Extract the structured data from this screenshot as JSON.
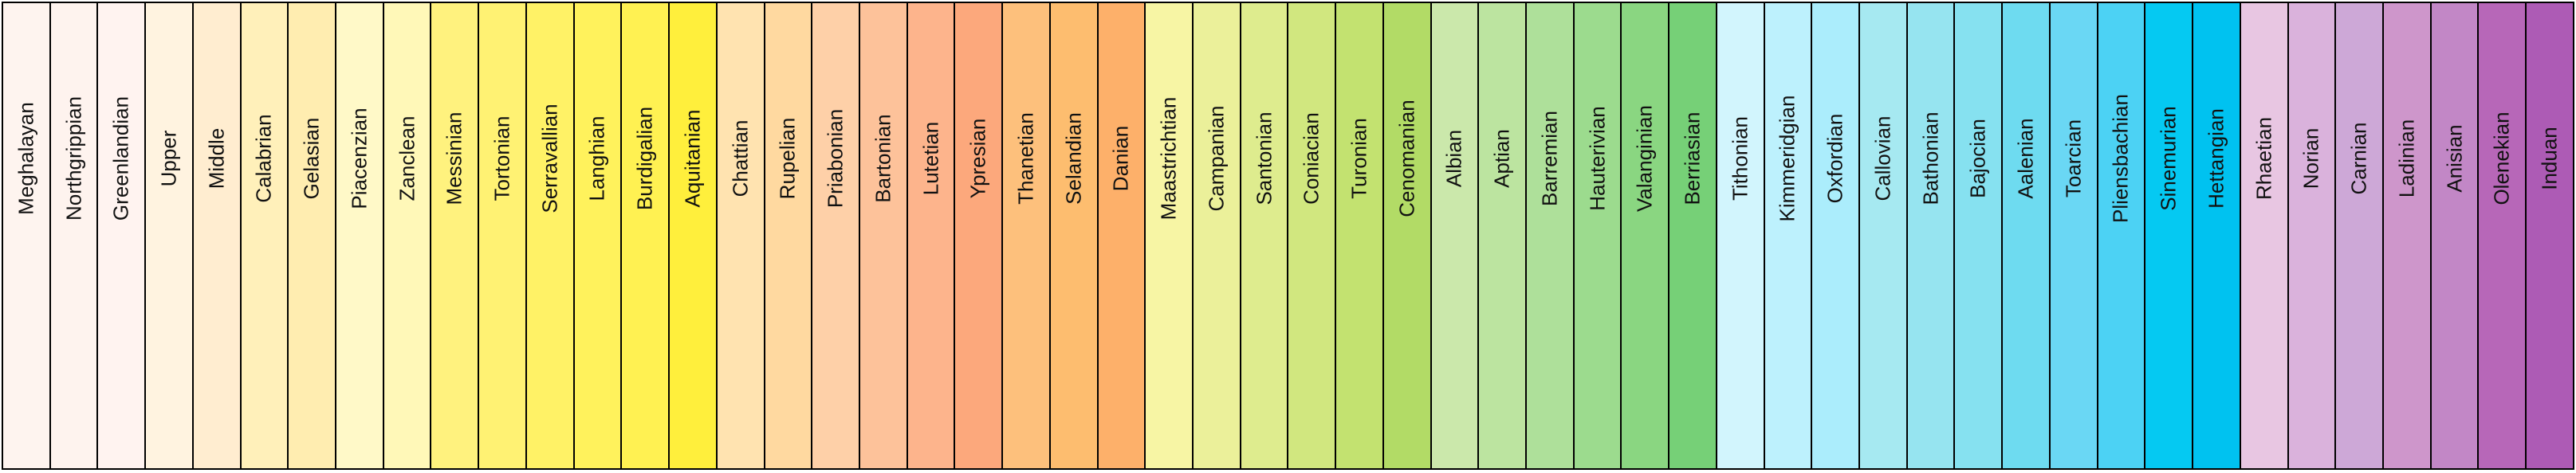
{
  "stages": [
    {
      "name": "Meghalayan",
      "color": "#FEF2EC"
    },
    {
      "name": "Northgrippian",
      "color": "#FEF1EB"
    },
    {
      "name": "Greenlandian",
      "color": "#FEF0E9"
    },
    {
      "name": "Upper",
      "color": "#FFF2DF"
    },
    {
      "name": "Middle",
      "color": "#FFEBCF"
    },
    {
      "name": "Calabrian",
      "color": "#FFF2BA"
    },
    {
      "name": "Gelasian",
      "color": "#FFEDB3"
    },
    {
      "name": "Piacenzian",
      "color": "#FFFBC2"
    },
    {
      "name": "Zanclean",
      "color": "#FFF9B2"
    },
    {
      "name": "Messinian",
      "color": "#FFF77B"
    },
    {
      "name": "Tortonian",
      "color": "#FFF76E"
    },
    {
      "name": "Serravallian",
      "color": "#FFF361"
    },
    {
      "name": "Langhian",
      "color": "#FFF259"
    },
    {
      "name": "Burdigalian",
      "color": "#FFF14A"
    },
    {
      "name": "Aquitanian",
      "color": "#FFEF38"
    },
    {
      "name": "Chattian",
      "color": "#FEE6AA"
    },
    {
      "name": "Rupelian",
      "color": "#FED99A"
    },
    {
      "name": "Priabonian",
      "color": "#FDCDA1"
    },
    {
      "name": "Bartonian",
      "color": "#FDC091"
    },
    {
      "name": "Lutetian",
      "color": "#FCB486"
    },
    {
      "name": "Ypresian",
      "color": "#FCA773"
    },
    {
      "name": "Thanetian",
      "color": "#FDBF6F"
    },
    {
      "name": "Selandian",
      "color": "#FEBF65"
    },
    {
      "name": "Danian",
      "color": "#FDB462"
    },
    {
      "name": "Maastrichtian",
      "color": "#F2FA8C"
    },
    {
      "name": "Campanian",
      "color": "#E6F47F"
    },
    {
      "name": "Santonian",
      "color": "#D9EF74"
    },
    {
      "name": "Coniacian",
      "color": "#CCE968"
    },
    {
      "name": "Turonian",
      "color": "#BFE35D"
    },
    {
      "name": "Cenomanian",
      "color": "#B3DE53"
    },
    {
      "name": "Albian",
      "color": "#CCEA97"
    },
    {
      "name": "Aptian",
      "color": "#BFE48A"
    },
    {
      "name": "Barremian",
      "color": "#B3DF7F"
    },
    {
      "name": "Hauterivian",
      "color": "#A6D975"
    },
    {
      "name": "Valanginian",
      "color": "#99D36A"
    },
    {
      "name": "Berriasian",
      "color": "#8CCD60"
    },
    {
      "name": "Tithonian",
      "color": "#D9F1F7"
    },
    {
      "name": "Kimmeridgian",
      "color": "#CCECF4"
    },
    {
      "name": "Oxfordian",
      "color": "#BFE7F1"
    },
    {
      "name": "Callovian",
      "color": "#BFE7E5"
    },
    {
      "name": "Bathonian",
      "color": "#B3E2E3"
    },
    {
      "name": "Bajocian",
      "color": "#A6DDE0"
    },
    {
      "name": "Aalenian",
      "color": "#9AD9DD"
    },
    {
      "name": "Toarcian",
      "color": "#99CEE3"
    },
    {
      "name": "Pliensbachian",
      "color": "#80C5DD"
    },
    {
      "name": "Sinemurian",
      "color": "#67BCD8"
    },
    {
      "name": "Hettangian",
      "color": "#4EB3D3"
    },
    {
      "name": "Rhaetian",
      "color": "#E3B9DB"
    },
    {
      "name": "Norian",
      "color": "#D6AAD3"
    },
    {
      "name": "Carnian",
      "color": "#C99BCB"
    },
    {
      "name": "Ladinian",
      "color": "#C983BF"
    },
    {
      "name": "Anisian",
      "color": "#BC75B7"
    },
    {
      "name": "Olenekian",
      "color": "#B051A5"
    },
    {
      "name": "Induan",
      "color": "#A4469F"
    }
  ]
}
